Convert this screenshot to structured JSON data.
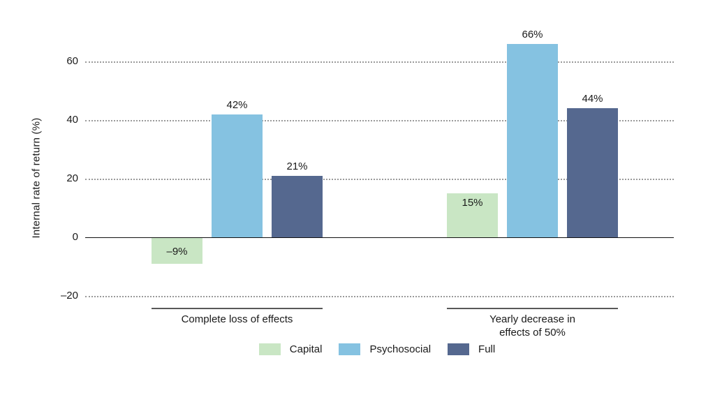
{
  "chart_data": {
    "type": "bar",
    "title": "",
    "ylabel": "Internal rate of return (%)",
    "xlabel": "",
    "ylim": [
      -28,
      72
    ],
    "yticks": [
      {
        "value": 60,
        "label": "60"
      },
      {
        "value": 40,
        "label": "40"
      },
      {
        "value": 20,
        "label": "20"
      },
      {
        "value": 0,
        "label": "0"
      },
      {
        "value": -20,
        "label": "–20"
      }
    ],
    "grid": "horizontal-dotted",
    "categories": [
      {
        "lines": [
          "Complete loss of effects"
        ]
      },
      {
        "lines": [
          "Yearly decrease in",
          "effects of 50%"
        ]
      }
    ],
    "series": [
      {
        "name": "Capital",
        "color": "#c9e6c4",
        "values": [
          -9,
          15
        ],
        "value_labels": [
          "–9%",
          "15%"
        ],
        "label_placement": "inside"
      },
      {
        "name": "Psychosocial",
        "color": "#85c2e1",
        "values": [
          42,
          66
        ],
        "value_labels": [
          "42%",
          "66%"
        ],
        "label_placement": "above"
      },
      {
        "name": "Full",
        "color": "#55688f",
        "values": [
          21,
          44
        ],
        "value_labels": [
          "21%",
          "44%"
        ],
        "label_placement": "above"
      }
    ],
    "legend": {
      "position": "bottom",
      "entries": [
        "Capital",
        "Psychosocial",
        "Full"
      ]
    },
    "colors": {
      "gridline": "#9a9a9a",
      "zero_line": "#111111",
      "category_rule": "#595959",
      "text": "#1a1a1a",
      "background": "#ffffff"
    }
  }
}
